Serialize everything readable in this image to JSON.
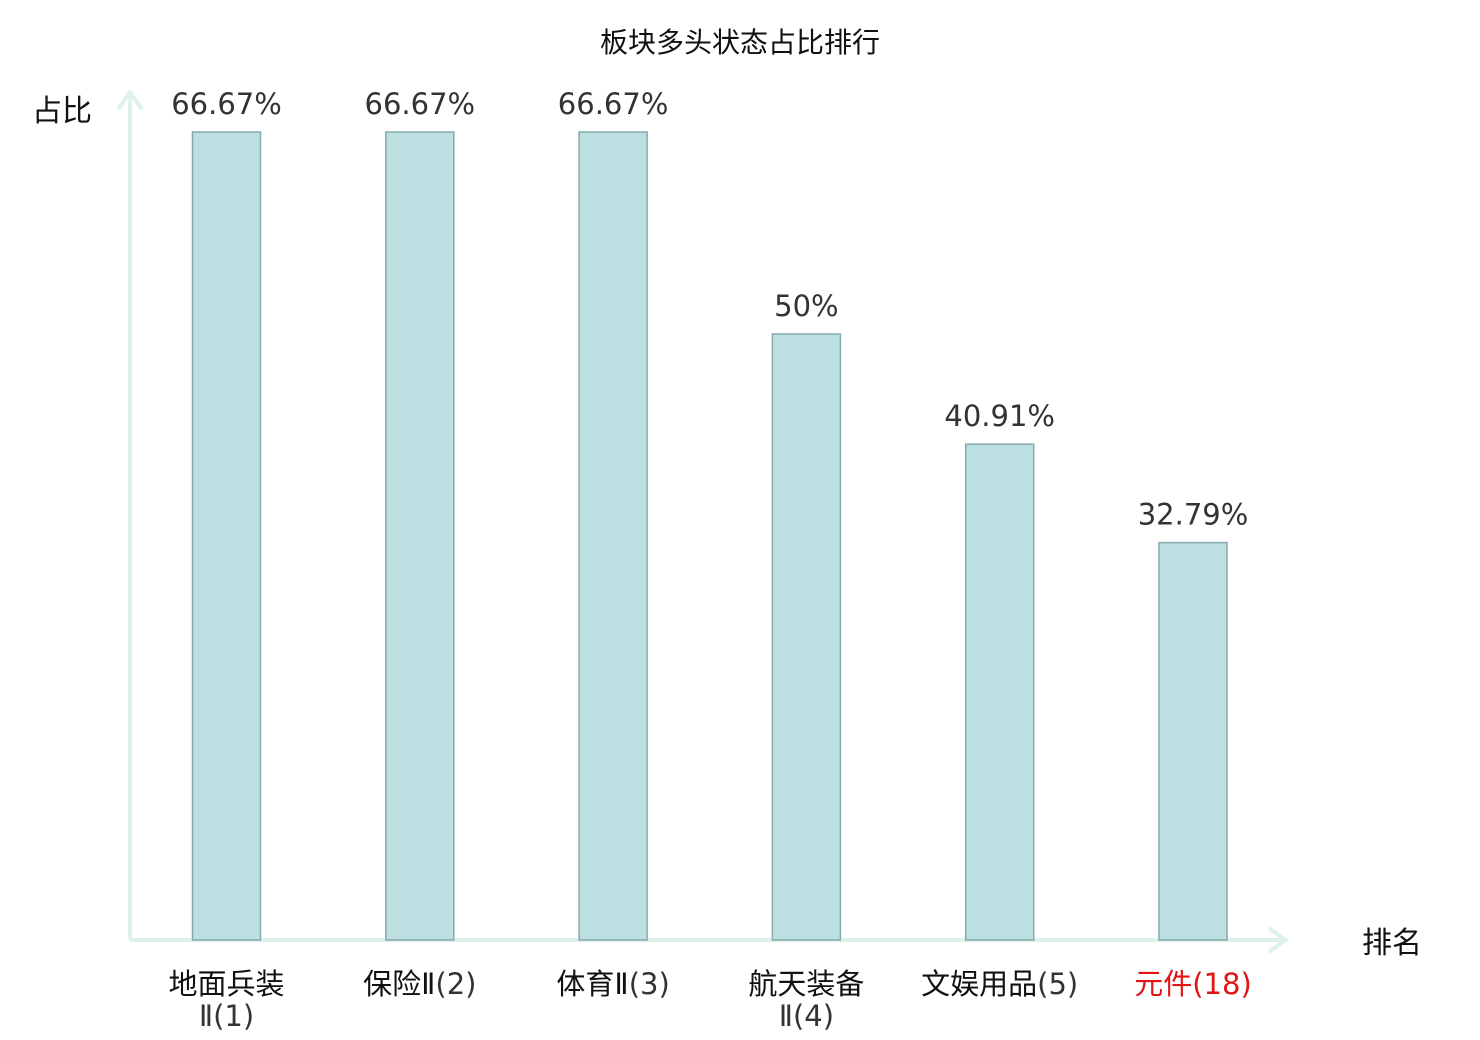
{
  "chart_data": {
    "type": "bar",
    "title": "板块多头状态占比排行",
    "ylabel": "占比",
    "xlabel": "排名",
    "ylim": [
      0,
      80
    ],
    "grid": false,
    "categories": [
      {
        "name": "地面兵装Ⅱ",
        "rank": "(1)",
        "highlight": false
      },
      {
        "name": "保险Ⅱ",
        "rank": "(2)",
        "highlight": false
      },
      {
        "name": "体育Ⅱ",
        "rank": "(3)",
        "highlight": false
      },
      {
        "name": "航天装备Ⅱ",
        "rank": "(4)",
        "highlight": false
      },
      {
        "name": "文娱用品",
        "rank": "(5)",
        "highlight": false
      },
      {
        "name": "元件",
        "rank": "(18)",
        "highlight": true
      }
    ],
    "values": [
      66.67,
      66.67,
      66.67,
      50,
      40.91,
      32.79
    ],
    "value_labels": [
      "66.67%",
      "66.67%",
      "66.67%",
      "50%",
      "40.91%",
      "32.79%"
    ]
  },
  "colors": {
    "bar_fill": "#bce0e2",
    "bar_stroke": "#86a9aa",
    "axis": "#dff1ef",
    "highlight_text": "#e01515",
    "text": "#111111",
    "rank_text": "#333333"
  }
}
